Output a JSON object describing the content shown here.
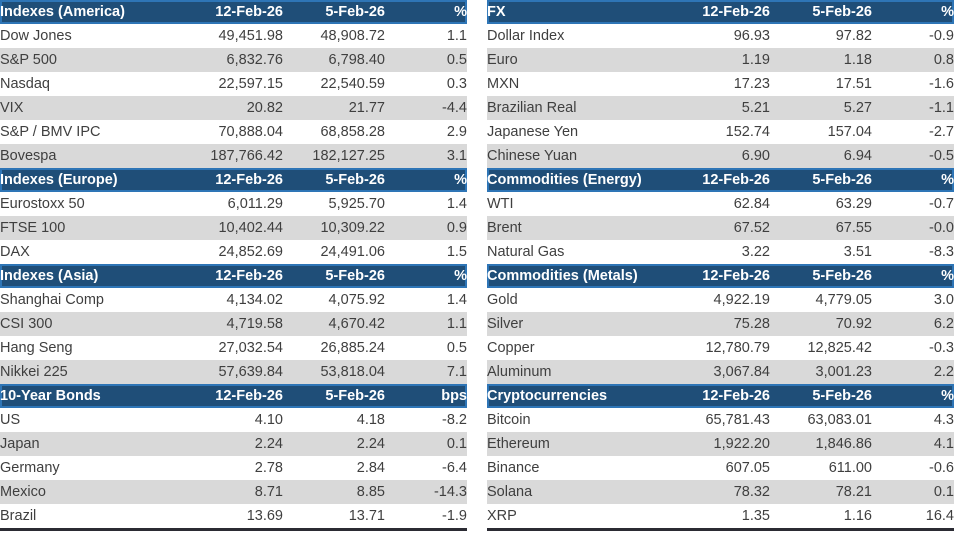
{
  "colors": {
    "header_bg": "#1F4E78",
    "header_border": "#2E75B6",
    "header_text": "#FFFFFF",
    "row_stripe": "#D9D9D9",
    "body_text": "#3F3F3F",
    "table_bottom_border": "#2B2B33"
  },
  "columns": {
    "current_date": "12-Feb-26",
    "previous_date": "5-Feb-26",
    "percent_label": "%",
    "bps_label": "bps"
  },
  "panels": [
    {
      "id": "left",
      "sections": [
        {
          "title": "Indexes (America)",
          "date1": "12-Feb-26",
          "date2": "5-Feb-26",
          "change_label": "%",
          "rows": [
            {
              "label": "Dow Jones",
              "current": "49,451.98",
              "previous": "48,908.72",
              "change": "1.1"
            },
            {
              "label": "S&P 500",
              "current": "6,832.76",
              "previous": "6,798.40",
              "change": "0.5"
            },
            {
              "label": "Nasdaq",
              "current": "22,597.15",
              "previous": "22,540.59",
              "change": "0.3"
            },
            {
              "label": "VIX",
              "current": "20.82",
              "previous": "21.77",
              "change": "-4.4"
            },
            {
              "label": "S&P / BMV IPC",
              "current": "70,888.04",
              "previous": "68,858.28",
              "change": "2.9"
            },
            {
              "label": "Bovespa",
              "current": "187,766.42",
              "previous": "182,127.25",
              "change": "3.1"
            }
          ]
        },
        {
          "title": "Indexes (Europe)",
          "date1": "12-Feb-26",
          "date2": "5-Feb-26",
          "change_label": "%",
          "rows": [
            {
              "label": "Eurostoxx 50",
              "current": "6,011.29",
              "previous": "5,925.70",
              "change": "1.4"
            },
            {
              "label": "FTSE 100",
              "current": "10,402.44",
              "previous": "10,309.22",
              "change": "0.9"
            },
            {
              "label": "DAX",
              "current": "24,852.69",
              "previous": "24,491.06",
              "change": "1.5"
            }
          ]
        },
        {
          "title": "Indexes (Asia)",
          "date1": "12-Feb-26",
          "date2": "5-Feb-26",
          "change_label": "%",
          "rows": [
            {
              "label": "Shanghai Comp",
              "current": "4,134.02",
              "previous": "4,075.92",
              "change": "1.4"
            },
            {
              "label": "CSI 300",
              "current": "4,719.58",
              "previous": "4,670.42",
              "change": "1.1"
            },
            {
              "label": "Hang Seng",
              "current": "27,032.54",
              "previous": "26,885.24",
              "change": "0.5"
            },
            {
              "label": "Nikkei 225",
              "current": "57,639.84",
              "previous": "53,818.04",
              "change": "7.1"
            }
          ]
        },
        {
          "title": "10-Year Bonds",
          "date1": "12-Feb-26",
          "date2": "5-Feb-26",
          "change_label": "bps",
          "rows": [
            {
              "label": "US",
              "current": "4.10",
              "previous": "4.18",
              "change": "-8.2"
            },
            {
              "label": "Japan",
              "current": "2.24",
              "previous": "2.24",
              "change": "0.1"
            },
            {
              "label": "Germany",
              "current": "2.78",
              "previous": "2.84",
              "change": "-6.4"
            },
            {
              "label": "Mexico",
              "current": "8.71",
              "previous": "8.85",
              "change": "-14.3"
            },
            {
              "label": "Brazil",
              "current": "13.69",
              "previous": "13.71",
              "change": "-1.9"
            }
          ]
        }
      ]
    },
    {
      "id": "right",
      "sections": [
        {
          "title": "FX",
          "date1": "12-Feb-26",
          "date2": "5-Feb-26",
          "change_label": "%",
          "rows": [
            {
              "label": "Dollar Index",
              "current": "96.93",
              "previous": "97.82",
              "change": "-0.9"
            },
            {
              "label": "Euro",
              "current": "1.19",
              "previous": "1.18",
              "change": "0.8"
            },
            {
              "label": "MXN",
              "current": "17.23",
              "previous": "17.51",
              "change": "-1.6"
            },
            {
              "label": "Brazilian Real",
              "current": "5.21",
              "previous": "5.27",
              "change": "-1.1"
            },
            {
              "label": "Japanese Yen",
              "current": "152.74",
              "previous": "157.04",
              "change": "-2.7"
            },
            {
              "label": "Chinese Yuan",
              "current": "6.90",
              "previous": "6.94",
              "change": "-0.5"
            }
          ]
        },
        {
          "title": "Commodities (Energy)",
          "date1": "12-Feb-26",
          "date2": "5-Feb-26",
          "change_label": "%",
          "rows": [
            {
              "label": "WTI",
              "current": "62.84",
              "previous": "63.29",
              "change": "-0.7"
            },
            {
              "label": "Brent",
              "current": "67.52",
              "previous": "67.55",
              "change": "-0.0"
            },
            {
              "label": "Natural Gas",
              "current": "3.22",
              "previous": "3.51",
              "change": "-8.3"
            }
          ]
        },
        {
          "title": "Commodities (Metals)",
          "date1": "12-Feb-26",
          "date2": "5-Feb-26",
          "change_label": "%",
          "rows": [
            {
              "label": "Gold",
              "current": "4,922.19",
              "previous": "4,779.05",
              "change": "3.0"
            },
            {
              "label": "Silver",
              "current": "75.28",
              "previous": "70.92",
              "change": "6.2"
            },
            {
              "label": "Copper",
              "current": "12,780.79",
              "previous": "12,825.42",
              "change": "-0.3"
            },
            {
              "label": "Aluminum",
              "current": "3,067.84",
              "previous": "3,001.23",
              "change": "2.2"
            }
          ]
        },
        {
          "title": "Cryptocurrencies",
          "date1": "12-Feb-26",
          "date2": "5-Feb-26",
          "change_label": "%",
          "rows": [
            {
              "label": "Bitcoin",
              "current": "65,781.43",
              "previous": "63,083.01",
              "change": "4.3"
            },
            {
              "label": "Ethereum",
              "current": "1,922.20",
              "previous": "1,846.86",
              "change": "4.1"
            },
            {
              "label": "Binance",
              "current": "607.05",
              "previous": "611.00",
              "change": "-0.6"
            },
            {
              "label": "Solana",
              "current": "78.32",
              "previous": "78.21",
              "change": "0.1"
            },
            {
              "label": "XRP",
              "current": "1.35",
              "previous": "1.16",
              "change": "16.4"
            }
          ]
        }
      ]
    }
  ]
}
